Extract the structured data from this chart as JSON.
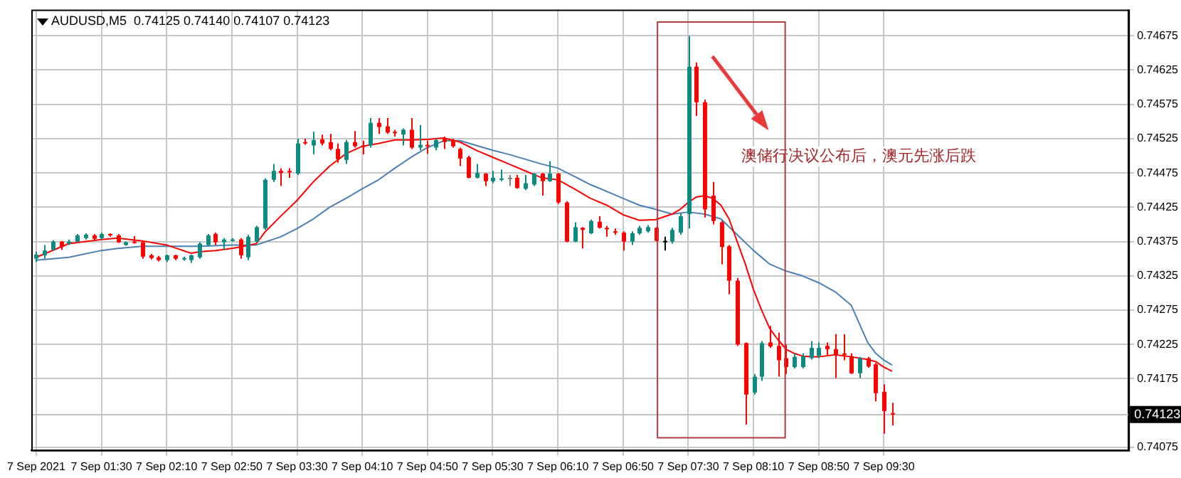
{
  "chart_data": {
    "type": "candlestick",
    "title": "AUDUSD,M5  0.74125 0.74140 0.74107 0.74123",
    "annotations": [
      "澳储行决议公布后，澳元先涨后跌"
    ],
    "x": [
      "2021-09-07T00:50",
      "2021-09-07T00:55",
      "2021-09-07T01:00",
      "2021-09-07T01:05",
      "2021-09-07T01:10",
      "2021-09-07T01:15",
      "2021-09-07T01:20",
      "2021-09-07T01:25",
      "2021-09-07T01:30",
      "2021-09-07T01:35",
      "2021-09-07T01:40",
      "2021-09-07T01:45",
      "2021-09-07T01:50",
      "2021-09-07T01:55",
      "2021-09-07T02:00",
      "2021-09-07T02:05",
      "2021-09-07T02:10",
      "2021-09-07T02:15",
      "2021-09-07T02:20",
      "2021-09-07T02:25",
      "2021-09-07T02:30",
      "2021-09-07T02:35",
      "2021-09-07T02:40",
      "2021-09-07T02:45",
      "2021-09-07T02:50",
      "2021-09-07T02:55",
      "2021-09-07T03:00",
      "2021-09-07T03:05",
      "2021-09-07T03:10",
      "2021-09-07T03:15",
      "2021-09-07T03:20",
      "2021-09-07T03:25",
      "2021-09-07T03:30",
      "2021-09-07T03:35",
      "2021-09-07T03:40",
      "2021-09-07T03:45",
      "2021-09-07T03:50",
      "2021-09-07T03:55",
      "2021-09-07T04:00",
      "2021-09-07T04:05",
      "2021-09-07T04:10",
      "2021-09-07T04:15",
      "2021-09-07T04:20",
      "2021-09-07T04:25",
      "2021-09-07T04:30",
      "2021-09-07T04:35",
      "2021-09-07T04:40",
      "2021-09-07T04:45",
      "2021-09-07T04:50",
      "2021-09-07T04:55",
      "2021-09-07T05:00",
      "2021-09-07T05:05",
      "2021-09-07T05:10",
      "2021-09-07T05:15",
      "2021-09-07T05:20",
      "2021-09-07T05:25",
      "2021-09-07T05:30",
      "2021-09-07T05:35",
      "2021-09-07T05:40",
      "2021-09-07T05:45",
      "2021-09-07T05:50",
      "2021-09-07T05:55",
      "2021-09-07T06:00",
      "2021-09-07T06:05",
      "2021-09-07T06:10",
      "2021-09-07T06:15",
      "2021-09-07T06:20",
      "2021-09-07T06:25",
      "2021-09-07T06:30",
      "2021-09-07T06:35",
      "2021-09-07T06:40",
      "2021-09-07T06:45",
      "2021-09-07T06:50",
      "2021-09-07T06:55",
      "2021-09-07T07:00",
      "2021-09-07T07:05",
      "2021-09-07T07:10",
      "2021-09-07T07:15",
      "2021-09-07T07:20",
      "2021-09-07T07:25",
      "2021-09-07T07:30",
      "2021-09-07T07:35",
      "2021-09-07T07:40",
      "2021-09-07T07:45",
      "2021-09-07T07:50",
      "2021-09-07T07:55",
      "2021-09-07T08:00",
      "2021-09-07T08:05",
      "2021-09-07T08:10",
      "2021-09-07T08:15",
      "2021-09-07T08:20",
      "2021-09-07T08:25",
      "2021-09-07T08:30",
      "2021-09-07T08:35",
      "2021-09-07T08:40",
      "2021-09-07T08:45",
      "2021-09-07T08:50",
      "2021-09-07T08:55",
      "2021-09-07T09:00",
      "2021-09-07T09:05",
      "2021-09-07T09:10",
      "2021-09-07T09:15",
      "2021-09-07T09:20",
      "2021-09-07T09:25",
      "2021-09-07T09:30",
      "2021-09-07T09:35"
    ],
    "ohlc": [
      [
        0.7435,
        0.7436,
        0.74345,
        0.74356
      ],
      [
        0.74355,
        0.7437,
        0.7435,
        0.74362
      ],
      [
        0.74363,
        0.74377,
        0.74362,
        0.74375
      ],
      [
        0.74375,
        0.74376,
        0.74363,
        0.74367
      ],
      [
        0.74372,
        0.74378,
        0.7437,
        0.74375
      ],
      [
        0.74375,
        0.74386,
        0.74374,
        0.74384
      ],
      [
        0.7438,
        0.74387,
        0.74378,
        0.74385
      ],
      [
        0.74384,
        0.74386,
        0.74377,
        0.74379
      ],
      [
        0.7438,
        0.74388,
        0.74378,
        0.74386
      ],
      [
        0.74386,
        0.74387,
        0.74382,
        0.74384
      ],
      [
        0.74384,
        0.74386,
        0.74373,
        0.74374
      ],
      [
        0.7437,
        0.74375,
        0.74369,
        0.74374
      ],
      [
        0.74375,
        0.74383,
        0.74372,
        0.74374
      ],
      [
        0.74374,
        0.74375,
        0.7435,
        0.74353
      ],
      [
        0.74355,
        0.74357,
        0.74349,
        0.74351
      ],
      [
        0.74352,
        0.74354,
        0.74346,
        0.74348
      ],
      [
        0.74348,
        0.74356,
        0.74345,
        0.74355
      ],
      [
        0.74355,
        0.74356,
        0.74348,
        0.7435
      ],
      [
        0.74349,
        0.74353,
        0.74347,
        0.74351
      ],
      [
        0.74348,
        0.74356,
        0.74344,
        0.74355
      ],
      [
        0.74352,
        0.74374,
        0.7435,
        0.74372
      ],
      [
        0.7437,
        0.74386,
        0.74368,
        0.74384
      ],
      [
        0.74386,
        0.74388,
        0.7437,
        0.74374
      ],
      [
        0.74374,
        0.7438,
        0.74363,
        0.74378
      ],
      [
        0.74377,
        0.7438,
        0.74375,
        0.74378
      ],
      [
        0.74378,
        0.7438,
        0.7435,
        0.74355
      ],
      [
        0.74352,
        0.74385,
        0.74348,
        0.74382
      ],
      [
        0.74375,
        0.74398,
        0.74374,
        0.74396
      ],
      [
        0.74394,
        0.74467,
        0.74392,
        0.74465
      ],
      [
        0.74465,
        0.74488,
        0.74462,
        0.74478
      ],
      [
        0.74478,
        0.74482,
        0.74456,
        0.74475
      ],
      [
        0.74478,
        0.74482,
        0.74468,
        0.74476
      ],
      [
        0.74474,
        0.74525,
        0.74472,
        0.74518
      ],
      [
        0.7452,
        0.74525,
        0.74516,
        0.74518
      ],
      [
        0.74515,
        0.74535,
        0.74502,
        0.74523
      ],
      [
        0.74524,
        0.74531,
        0.74515,
        0.74518
      ],
      [
        0.7452,
        0.74532,
        0.74508,
        0.7451
      ],
      [
        0.7451,
        0.74518,
        0.7449,
        0.74495
      ],
      [
        0.74494,
        0.74523,
        0.74488,
        0.7452
      ],
      [
        0.7452,
        0.74536,
        0.74512,
        0.74514
      ],
      [
        0.74515,
        0.74522,
        0.74502,
        0.74514
      ],
      [
        0.74515,
        0.74555,
        0.74512,
        0.74548
      ],
      [
        0.74548,
        0.74555,
        0.74532,
        0.74542
      ],
      [
        0.74543,
        0.74555,
        0.74532,
        0.74534
      ],
      [
        0.74535,
        0.74538,
        0.74528,
        0.74534
      ],
      [
        0.74531,
        0.7454,
        0.74515,
        0.74538
      ],
      [
        0.74538,
        0.74555,
        0.7451,
        0.74512
      ],
      [
        0.74512,
        0.74545,
        0.74508,
        0.74516
      ],
      [
        0.74516,
        0.74522,
        0.74503,
        0.74515
      ],
      [
        0.74512,
        0.74525,
        0.74508,
        0.74523
      ],
      [
        0.74526,
        0.74528,
        0.7451,
        0.7452
      ],
      [
        0.74522,
        0.74525,
        0.74512,
        0.74514
      ],
      [
        0.7451,
        0.74512,
        0.74485,
        0.74496
      ],
      [
        0.74498,
        0.745,
        0.74467,
        0.74468
      ],
      [
        0.74468,
        0.74488,
        0.74467,
        0.74475
      ],
      [
        0.74474,
        0.74475,
        0.74456,
        0.74463
      ],
      [
        0.74463,
        0.74478,
        0.7446,
        0.74468
      ],
      [
        0.74465,
        0.7448,
        0.74463,
        0.74467
      ],
      [
        0.74468,
        0.74472,
        0.74456,
        0.74468
      ],
      [
        0.74468,
        0.74472,
        0.74452,
        0.74453
      ],
      [
        0.74452,
        0.74472,
        0.7445,
        0.7446
      ],
      [
        0.74458,
        0.74475,
        0.74456,
        0.74474
      ],
      [
        0.74474,
        0.74475,
        0.74442,
        0.74463
      ],
      [
        0.74463,
        0.74492,
        0.74462,
        0.74474
      ],
      [
        0.74474,
        0.74475,
        0.7443,
        0.74432
      ],
      [
        0.74432,
        0.74434,
        0.74374,
        0.74375
      ],
      [
        0.74375,
        0.74403,
        0.74374,
        0.74396
      ],
      [
        0.74395,
        0.74396,
        0.74365,
        0.74392
      ],
      [
        0.74387,
        0.74407,
        0.74386,
        0.74405
      ],
      [
        0.74404,
        0.74412,
        0.74394,
        0.74395
      ],
      [
        0.74395,
        0.74398,
        0.74382,
        0.74394
      ],
      [
        0.7439,
        0.74394,
        0.74385,
        0.74389
      ],
      [
        0.74388,
        0.7439,
        0.74362,
        0.74375
      ],
      [
        0.74375,
        0.7439,
        0.7437,
        0.74387
      ],
      [
        0.74387,
        0.74398,
        0.74385,
        0.74395
      ],
      [
        0.7439,
        0.74399,
        0.74388,
        0.74396
      ],
      [
        0.74395,
        0.74396,
        0.74375,
        0.74376
      ],
      [
        0.74376,
        0.74382,
        0.74362,
        0.74376
      ],
      [
        0.74375,
        0.74395,
        0.74372,
        0.74392
      ],
      [
        0.74388,
        0.74416,
        0.74385,
        0.74412
      ],
      [
        0.74415,
        0.74675,
        0.74394,
        0.7463
      ],
      [
        0.7463,
        0.74636,
        0.74558,
        0.74578
      ],
      [
        0.74578,
        0.74582,
        0.7441,
        0.74422
      ],
      [
        0.74442,
        0.74462,
        0.744,
        0.74405
      ],
      [
        0.74403,
        0.74405,
        0.74342,
        0.74367
      ],
      [
        0.74368,
        0.7437,
        0.74298,
        0.74318
      ],
      [
        0.74318,
        0.74322,
        0.74223,
        0.74225
      ],
      [
        0.74227,
        0.74228,
        0.74108,
        0.74152
      ],
      [
        0.74155,
        0.74182,
        0.74152,
        0.74178
      ],
      [
        0.74178,
        0.7423,
        0.74172,
        0.74227
      ],
      [
        0.74228,
        0.74252,
        0.7422,
        0.74222
      ],
      [
        0.74223,
        0.74242,
        0.74178,
        0.74202
      ],
      [
        0.74205,
        0.74225,
        0.74182,
        0.74192
      ],
      [
        0.74192,
        0.74212,
        0.7419,
        0.74207
      ],
      [
        0.74192,
        0.74212,
        0.7419,
        0.74208
      ],
      [
        0.74205,
        0.7423,
        0.74203,
        0.7422
      ],
      [
        0.74208,
        0.74228,
        0.74205,
        0.7422
      ],
      [
        0.74223,
        0.74228,
        0.74208,
        0.74218
      ],
      [
        0.74218,
        0.7424,
        0.74176,
        0.7421
      ],
      [
        0.74212,
        0.7424,
        0.74202,
        0.74211
      ],
      [
        0.74208,
        0.74212,
        0.74182,
        0.74183
      ],
      [
        0.74183,
        0.74207,
        0.74176,
        0.74205
      ],
      [
        0.74205,
        0.74207,
        0.74191,
        0.74193
      ],
      [
        0.74196,
        0.74198,
        0.74142,
        0.74154
      ],
      [
        0.74156,
        0.74167,
        0.74095,
        0.74128
      ],
      [
        0.74125,
        0.7414,
        0.74107,
        0.74123
      ]
    ],
    "colors": [
      "#0f8a80",
      "#0f8a80",
      "#0f8a80",
      "#ff0000",
      "#0f8a80",
      "#0f8a80",
      "#0f8a80",
      "#ff0000",
      "#0f8a80",
      "#ff0000",
      "#ff0000",
      "#0f8a80",
      "#ff0000",
      "#ff0000",
      "#ff0000",
      "#ff0000",
      "#0f8a80",
      "#ff0000",
      "#0f8a80",
      "#0f8a80",
      "#0f8a80",
      "#0f8a80",
      "#ff0000",
      "#0f8a80",
      "#0f8a80",
      "#ff0000",
      "#0f8a80",
      "#0f8a80",
      "#0f8a80",
      "#0f8a80",
      "#ff0000",
      "#ff0000",
      "#0f8a80",
      "#ff0000",
      "#0f8a80",
      "#ff0000",
      "#ff0000",
      "#ff0000",
      "#0f8a80",
      "#ff0000",
      "#ff0000",
      "#0f8a80",
      "#ff0000",
      "#ff0000",
      "#ff0000",
      "#0f8a80",
      "#ff0000",
      "#0f8a80",
      "#ff0000",
      "#0f8a80",
      "#ff0000",
      "#ff0000",
      "#ff0000",
      "#ff0000",
      "#0f8a80",
      "#ff0000",
      "#0f8a80",
      "#0f8a80",
      "#808080",
      "#ff0000",
      "#0f8a80",
      "#0f8a80",
      "#ff0000",
      "#0f8a80",
      "#ff0000",
      "#ff0000",
      "#0f8a80",
      "#ff0000",
      "#0f8a80",
      "#ff0000",
      "#ff0000",
      "#ff0000",
      "#ff0000",
      "#0f8a80",
      "#0f8a80",
      "#0f8a80",
      "#ff0000",
      "#000000",
      "#0f8a80",
      "#0f8a80",
      "#0f8a80",
      "#ff0000",
      "#ff0000",
      "#ff0000",
      "#ff0000",
      "#ff0000",
      "#ff0000",
      "#ff0000",
      "#0f8a80",
      "#0f8a80",
      "#ff0000",
      "#ff0000",
      "#ff0000",
      "#0f8a80",
      "#0f8a80",
      "#0f8a80",
      "#0f8a80",
      "#ff0000",
      "#ff0000",
      "#ff0000",
      "#ff0000",
      "#0f8a80",
      "#ff0000",
      "#ff0000",
      "#ff0000",
      "#ff0000"
    ],
    "series": [
      {
        "type": "line",
        "color": "#ff0000",
        "x": [
          "2021-09-07T00:50",
          "2021-09-07T01:10",
          "2021-09-07T01:30",
          "2021-09-07T01:40",
          "2021-09-07T01:55",
          "2021-09-07T02:10",
          "2021-09-07T02:25",
          "2021-09-07T02:30",
          "2021-09-07T02:40",
          "2021-09-07T02:50",
          "2021-09-07T02:55",
          "2021-09-07T03:05",
          "2021-09-07T03:10",
          "2021-09-07T03:20",
          "2021-09-07T03:30",
          "2021-09-07T03:40",
          "2021-09-07T03:50",
          "2021-09-07T04:00",
          "2021-09-07T04:10",
          "2021-09-07T04:20",
          "2021-09-07T04:30",
          "2021-09-07T04:40",
          "2021-09-07T04:50",
          "2021-09-07T05:00",
          "2021-09-07T05:10",
          "2021-09-07T05:20",
          "2021-09-07T05:30",
          "2021-09-07T05:40",
          "2021-09-07T05:50",
          "2021-09-07T06:00",
          "2021-09-07T06:10",
          "2021-09-07T06:20",
          "2021-09-07T06:30",
          "2021-09-07T06:40",
          "2021-09-07T06:50",
          "2021-09-07T07:00",
          "2021-09-07T07:10",
          "2021-09-07T07:20",
          "2021-09-07T07:25",
          "2021-09-07T07:30",
          "2021-09-07T07:35",
          "2021-09-07T07:40",
          "2021-09-07T07:45",
          "2021-09-07T07:50",
          "2021-09-07T07:55",
          "2021-09-07T08:00",
          "2021-09-07T08:05",
          "2021-09-07T08:10",
          "2021-09-07T08:15",
          "2021-09-07T08:20",
          "2021-09-07T08:25",
          "2021-09-07T08:30",
          "2021-09-07T08:35",
          "2021-09-07T08:40",
          "2021-09-07T08:50",
          "2021-09-07T09:00",
          "2021-09-07T09:10",
          "2021-09-07T09:20",
          "2021-09-07T09:25",
          "2021-09-07T09:30",
          "2021-09-07T09:35"
        ],
        "values": [
          0.74352,
          0.74372,
          0.74378,
          0.7438,
          0.74376,
          0.7437,
          0.74358,
          0.7436,
          0.74362,
          0.74365,
          0.74367,
          0.74372,
          0.74388,
          0.74412,
          0.74435,
          0.74462,
          0.74485,
          0.74503,
          0.74514,
          0.74518,
          0.74523,
          0.74523,
          0.74524,
          0.74526,
          0.7452,
          0.74508,
          0.74498,
          0.74488,
          0.74478,
          0.74468,
          0.74465,
          0.74452,
          0.74438,
          0.74428,
          0.74414,
          0.74406,
          0.74407,
          0.74415,
          0.74422,
          0.74432,
          0.7444,
          0.74442,
          0.74438,
          0.74428,
          0.74408,
          0.74375,
          0.74342,
          0.74305,
          0.74275,
          0.74248,
          0.74232,
          0.74218,
          0.74212,
          0.74208,
          0.74207,
          0.7421,
          0.74207,
          0.74203,
          0.742,
          0.74192,
          0.74186
        ]
      },
      {
        "type": "line",
        "color": "#4a7fb5",
        "x": [
          "2021-09-07T00:50",
          "2021-09-07T01:10",
          "2021-09-07T01:30",
          "2021-09-07T01:40",
          "2021-09-07T01:55",
          "2021-09-07T02:10",
          "2021-09-07T02:30",
          "2021-09-07T02:50",
          "2021-09-07T03:05",
          "2021-09-07T03:20",
          "2021-09-07T03:30",
          "2021-09-07T03:40",
          "2021-09-07T03:50",
          "2021-09-07T04:00",
          "2021-09-07T04:10",
          "2021-09-07T04:20",
          "2021-09-07T04:30",
          "2021-09-07T04:40",
          "2021-09-07T04:50",
          "2021-09-07T05:00",
          "2021-09-07T05:10",
          "2021-09-07T05:20",
          "2021-09-07T05:30",
          "2021-09-07T05:40",
          "2021-09-07T05:50",
          "2021-09-07T06:00",
          "2021-09-07T06:10",
          "2021-09-07T06:20",
          "2021-09-07T06:30",
          "2021-09-07T06:40",
          "2021-09-07T06:50",
          "2021-09-07T07:00",
          "2021-09-07T07:10",
          "2021-09-07T07:20",
          "2021-09-07T07:30",
          "2021-09-07T07:40",
          "2021-09-07T07:50",
          "2021-09-07T08:00",
          "2021-09-07T08:10",
          "2021-09-07T08:20",
          "2021-09-07T08:30",
          "2021-09-07T08:40",
          "2021-09-07T08:50",
          "2021-09-07T09:00",
          "2021-09-07T09:10",
          "2021-09-07T09:15",
          "2021-09-07T09:20",
          "2021-09-07T09:25",
          "2021-09-07T09:30",
          "2021-09-07T09:35"
        ],
        "values": [
          0.74348,
          0.74352,
          0.74362,
          0.74365,
          0.74368,
          0.74368,
          0.74368,
          0.7437,
          0.7437,
          0.74382,
          0.74394,
          0.74408,
          0.74425,
          0.74438,
          0.74452,
          0.74465,
          0.74482,
          0.74498,
          0.74512,
          0.74522,
          0.74522,
          0.74515,
          0.74508,
          0.74502,
          0.74495,
          0.74488,
          0.74482,
          0.7447,
          0.74458,
          0.74448,
          0.74438,
          0.74428,
          0.74422,
          0.74415,
          0.74418,
          0.74415,
          0.74408,
          0.74385,
          0.74362,
          0.74342,
          0.74332,
          0.74325,
          0.74315,
          0.74302,
          0.74282,
          0.74255,
          0.74228,
          0.74212,
          0.74202,
          0.74195
        ]
      }
    ],
    "xlim": [
      "2021-09-07T00:47",
      "2021-09-07T12:00"
    ],
    "xticks": [
      {
        "value": "2021-09-07T00:50",
        "label": "7 Sep 2021"
      },
      {
        "value": "2021-09-07T01:30",
        "label": "7 Sep 01:30"
      },
      {
        "value": "2021-09-07T02:10",
        "label": "7 Sep 02:10"
      },
      {
        "value": "2021-09-07T02:50",
        "label": "7 Sep 02:50"
      },
      {
        "value": "2021-09-07T03:30",
        "label": "7 Sep 03:30"
      },
      {
        "value": "2021-09-07T04:10",
        "label": "7 Sep 04:10"
      },
      {
        "value": "2021-09-07T04:50",
        "label": "7 Sep 04:50"
      },
      {
        "value": "2021-09-07T05:30",
        "label": "7 Sep 05:30"
      },
      {
        "value": "2021-09-07T06:10",
        "label": "7 Sep 06:10"
      },
      {
        "value": "2021-09-07T06:50",
        "label": "7 Sep 06:50"
      },
      {
        "value": "2021-09-07T07:30",
        "label": "7 Sep 07:30"
      },
      {
        "value": "2021-09-07T08:10",
        "label": "7 Sep 08:10"
      },
      {
        "value": "2021-09-07T08:50",
        "label": "7 Sep 08:50"
      },
      {
        "value": "2021-09-07T09:30",
        "label": "7 Sep 09:30"
      }
    ],
    "ylim": [
      0.74071,
      0.74713
    ],
    "yticks": [
      0.74675,
      0.74625,
      0.74575,
      0.74525,
      0.74475,
      0.74425,
      0.74375,
      0.74325,
      0.74275,
      0.74225,
      0.74175,
      0.74075
    ],
    "ref_lines": [
      {
        "axis": "y",
        "value": 0.74123,
        "label": "0.74123",
        "color": "#c0c0c0"
      }
    ],
    "grid": true,
    "legend": false
  }
}
